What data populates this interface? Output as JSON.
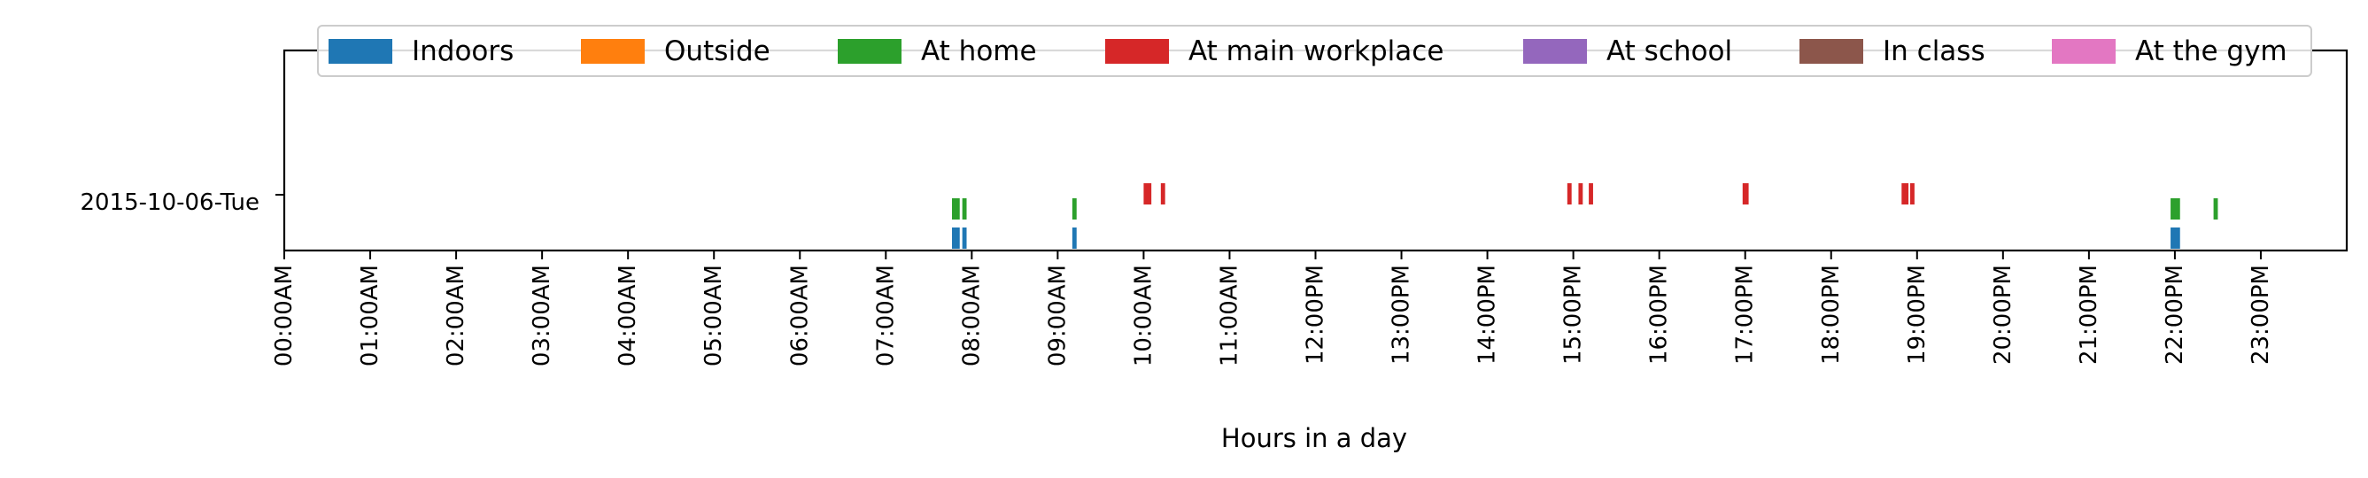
{
  "chart_data": {
    "type": "event-timeline",
    "xlabel": "Hours in a day",
    "ylabel": "",
    "xlim": [
      0,
      24
    ],
    "x_ticks": [
      "00:00AM",
      "01:00AM",
      "02:00AM",
      "03:00AM",
      "04:00AM",
      "05:00AM",
      "06:00AM",
      "07:00AM",
      "08:00AM",
      "09:00AM",
      "10:00AM",
      "11:00AM",
      "12:00PM",
      "13:00PM",
      "14:00PM",
      "15:00PM",
      "16:00PM",
      "17:00PM",
      "18:00PM",
      "19:00PM",
      "20:00PM",
      "21:00PM",
      "22:00PM",
      "23:00PM"
    ],
    "y_categories": [
      "2015-10-06-Tue"
    ],
    "legend_position": "top-center",
    "series": [
      {
        "name": "Indoors",
        "color": "#1f77b4",
        "events": [
          [
            7.77,
            0.09
          ],
          [
            7.89,
            0.05
          ],
          [
            9.17,
            0.05
          ],
          [
            21.95,
            0.11
          ]
        ]
      },
      {
        "name": "Outside",
        "color": "#ff7f0e",
        "events": []
      },
      {
        "name": "At home",
        "color": "#2ca02c",
        "events": [
          [
            7.77,
            0.09
          ],
          [
            7.89,
            0.05
          ],
          [
            9.17,
            0.05
          ],
          [
            21.95,
            0.11
          ],
          [
            22.45,
            0.05
          ]
        ]
      },
      {
        "name": "At main workplace",
        "color": "#d62728",
        "events": [
          [
            10.0,
            0.09
          ],
          [
            10.2,
            0.05
          ],
          [
            14.93,
            0.05
          ],
          [
            15.06,
            0.05
          ],
          [
            15.18,
            0.05
          ],
          [
            16.97,
            0.07
          ],
          [
            18.82,
            0.08
          ],
          [
            18.92,
            0.05
          ]
        ]
      },
      {
        "name": "At school",
        "color": "#9467bd",
        "events": []
      },
      {
        "name": "In class",
        "color": "#8c564b",
        "events": []
      },
      {
        "name": "At the gym",
        "color": "#e377c2",
        "events": []
      }
    ]
  }
}
